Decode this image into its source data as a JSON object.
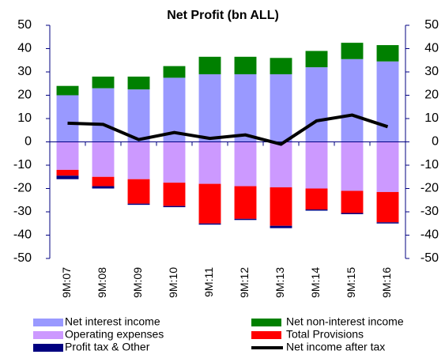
{
  "chart_data": {
    "type": "bar",
    "stacked": true,
    "title": "Net Profit (bn ALL)",
    "categories": [
      "9M:07",
      "9M:08",
      "9M:09",
      "9M:10",
      "9M:11",
      "9M:12",
      "9M:13",
      "9M:14",
      "9M:15",
      "9M:16"
    ],
    "series": [
      {
        "name": "Net interest income",
        "color": "#9999ff",
        "values": [
          20,
          23,
          22.5,
          27.5,
          29,
          29,
          29,
          32,
          35.5,
          34.5
        ]
      },
      {
        "name": "Net non-interest income",
        "color": "#008000",
        "values": [
          4,
          5,
          5.5,
          5,
          7.5,
          7.5,
          7,
          7,
          7,
          7
        ]
      },
      {
        "name": "Operating expenses",
        "color": "#cc99ff",
        "values": [
          -12,
          -15,
          -16,
          -17.5,
          -18,
          -19,
          -19.5,
          -20,
          -21,
          -21.5
        ]
      },
      {
        "name": "Total Provisions",
        "color": "#ff0000",
        "values": [
          -2.5,
          -4,
          -10.5,
          -10,
          -17,
          -14,
          -16.5,
          -9,
          -9.5,
          -13
        ]
      },
      {
        "name": "Profit tax & Other",
        "color": "#000080",
        "values": [
          -1.5,
          -1,
          -0.5,
          -0.5,
          -0.5,
          -0.5,
          -1,
          -0.5,
          -0.5,
          -0.5
        ]
      },
      {
        "name": "Net income after tax",
        "color": "#000000",
        "type": "line",
        "values": [
          8,
          7.5,
          1,
          4,
          1.5,
          3,
          -1,
          9,
          11.5,
          6.5
        ]
      }
    ],
    "ylim": [
      -50,
      50
    ],
    "yticks": [
      -50,
      -40,
      -30,
      -20,
      -10,
      0,
      10,
      20,
      30,
      40,
      50
    ],
    "y2lim": [
      -50,
      50
    ],
    "y2ticks": [
      -50,
      -40,
      -30,
      -20,
      -10,
      0,
      10,
      20,
      30,
      40,
      50
    ],
    "legend": "bottom"
  }
}
